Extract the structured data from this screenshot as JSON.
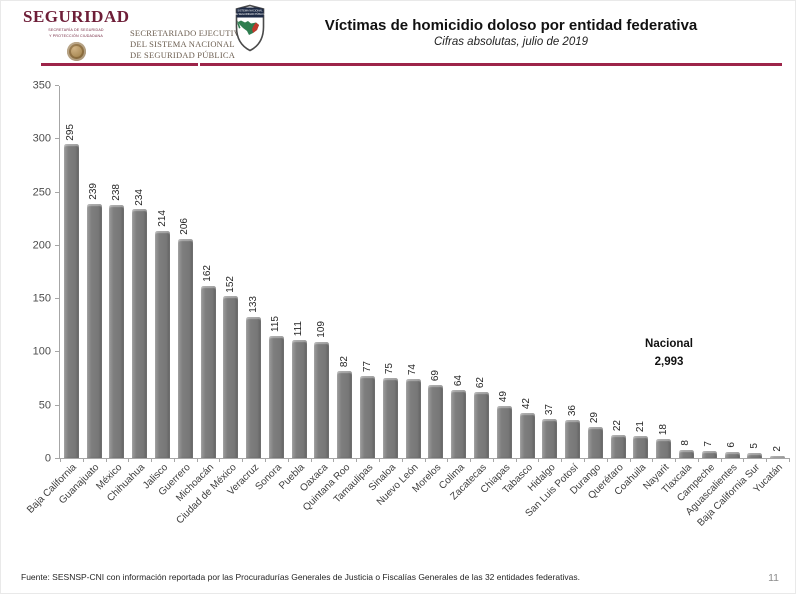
{
  "header": {
    "seguridad": {
      "word": "SEGURIDAD",
      "sub1": "SECRETARÍA DE SEGURIDAD",
      "sub2": "Y PROTECCIÓN CIUDADANA"
    },
    "secretariado": {
      "line1": "SECRETARIADO EJECUTIVO",
      "line2": "DEL SISTEMA NACIONAL",
      "line3": "DE SEGURIDAD PÚBLICA"
    },
    "shield": {
      "band1": "SISTEMA NACIONAL",
      "band2": "DE SEGURIDAD PÚBLICA"
    },
    "title": "Víctimas de homicidio doloso por entidad federativa",
    "subtitle": "Cifras absolutas, julio de 2019",
    "accent_color": "#9d2449"
  },
  "chart_data": {
    "type": "bar",
    "title": "Víctimas de homicidio doloso por entidad federativa",
    "subtitle": "Cifras absolutas, julio de 2019",
    "categories": [
      "Baja California",
      "Guanajuato",
      "México",
      "Chihuahua",
      "Jalisco",
      "Guerrero",
      "Michoacán",
      "Ciudad de México",
      "Veracruz",
      "Sonora",
      "Puebla",
      "Oaxaca",
      "Quintana Roo",
      "Tamaulipas",
      "Sinaloa",
      "Nuevo León",
      "Morelos",
      "Colima",
      "Zacatecas",
      "Chiapas",
      "Tabasco",
      "Hidalgo",
      "San Luis Potosí",
      "Durango",
      "Querétaro",
      "Coahuila",
      "Nayarit",
      "Tlaxcala",
      "Campeche",
      "Aguascalientes",
      "Baja California Sur",
      "Yucatán"
    ],
    "values": [
      295,
      239,
      238,
      234,
      214,
      206,
      162,
      152,
      133,
      115,
      111,
      109,
      82,
      77,
      75,
      74,
      69,
      64,
      62,
      49,
      42,
      37,
      36,
      29,
      22,
      21,
      18,
      8,
      7,
      6,
      5,
      2
    ],
    "xlabel": "",
    "ylabel": "",
    "ylim": [
      0,
      350
    ],
    "yticks": [
      0,
      50,
      100,
      150,
      200,
      250,
      300,
      350
    ],
    "grid": false,
    "legend": null,
    "bar_color": "#7f7f7f",
    "annotation": {
      "label": "Nacional",
      "value": "2,993"
    }
  },
  "footer": {
    "source": "Fuente: SESNSP-CNI con información reportada por las Procuradurías Generales de Justicia o Fiscalías Generales de las 32 entidades federativas.",
    "page_number": "11"
  }
}
